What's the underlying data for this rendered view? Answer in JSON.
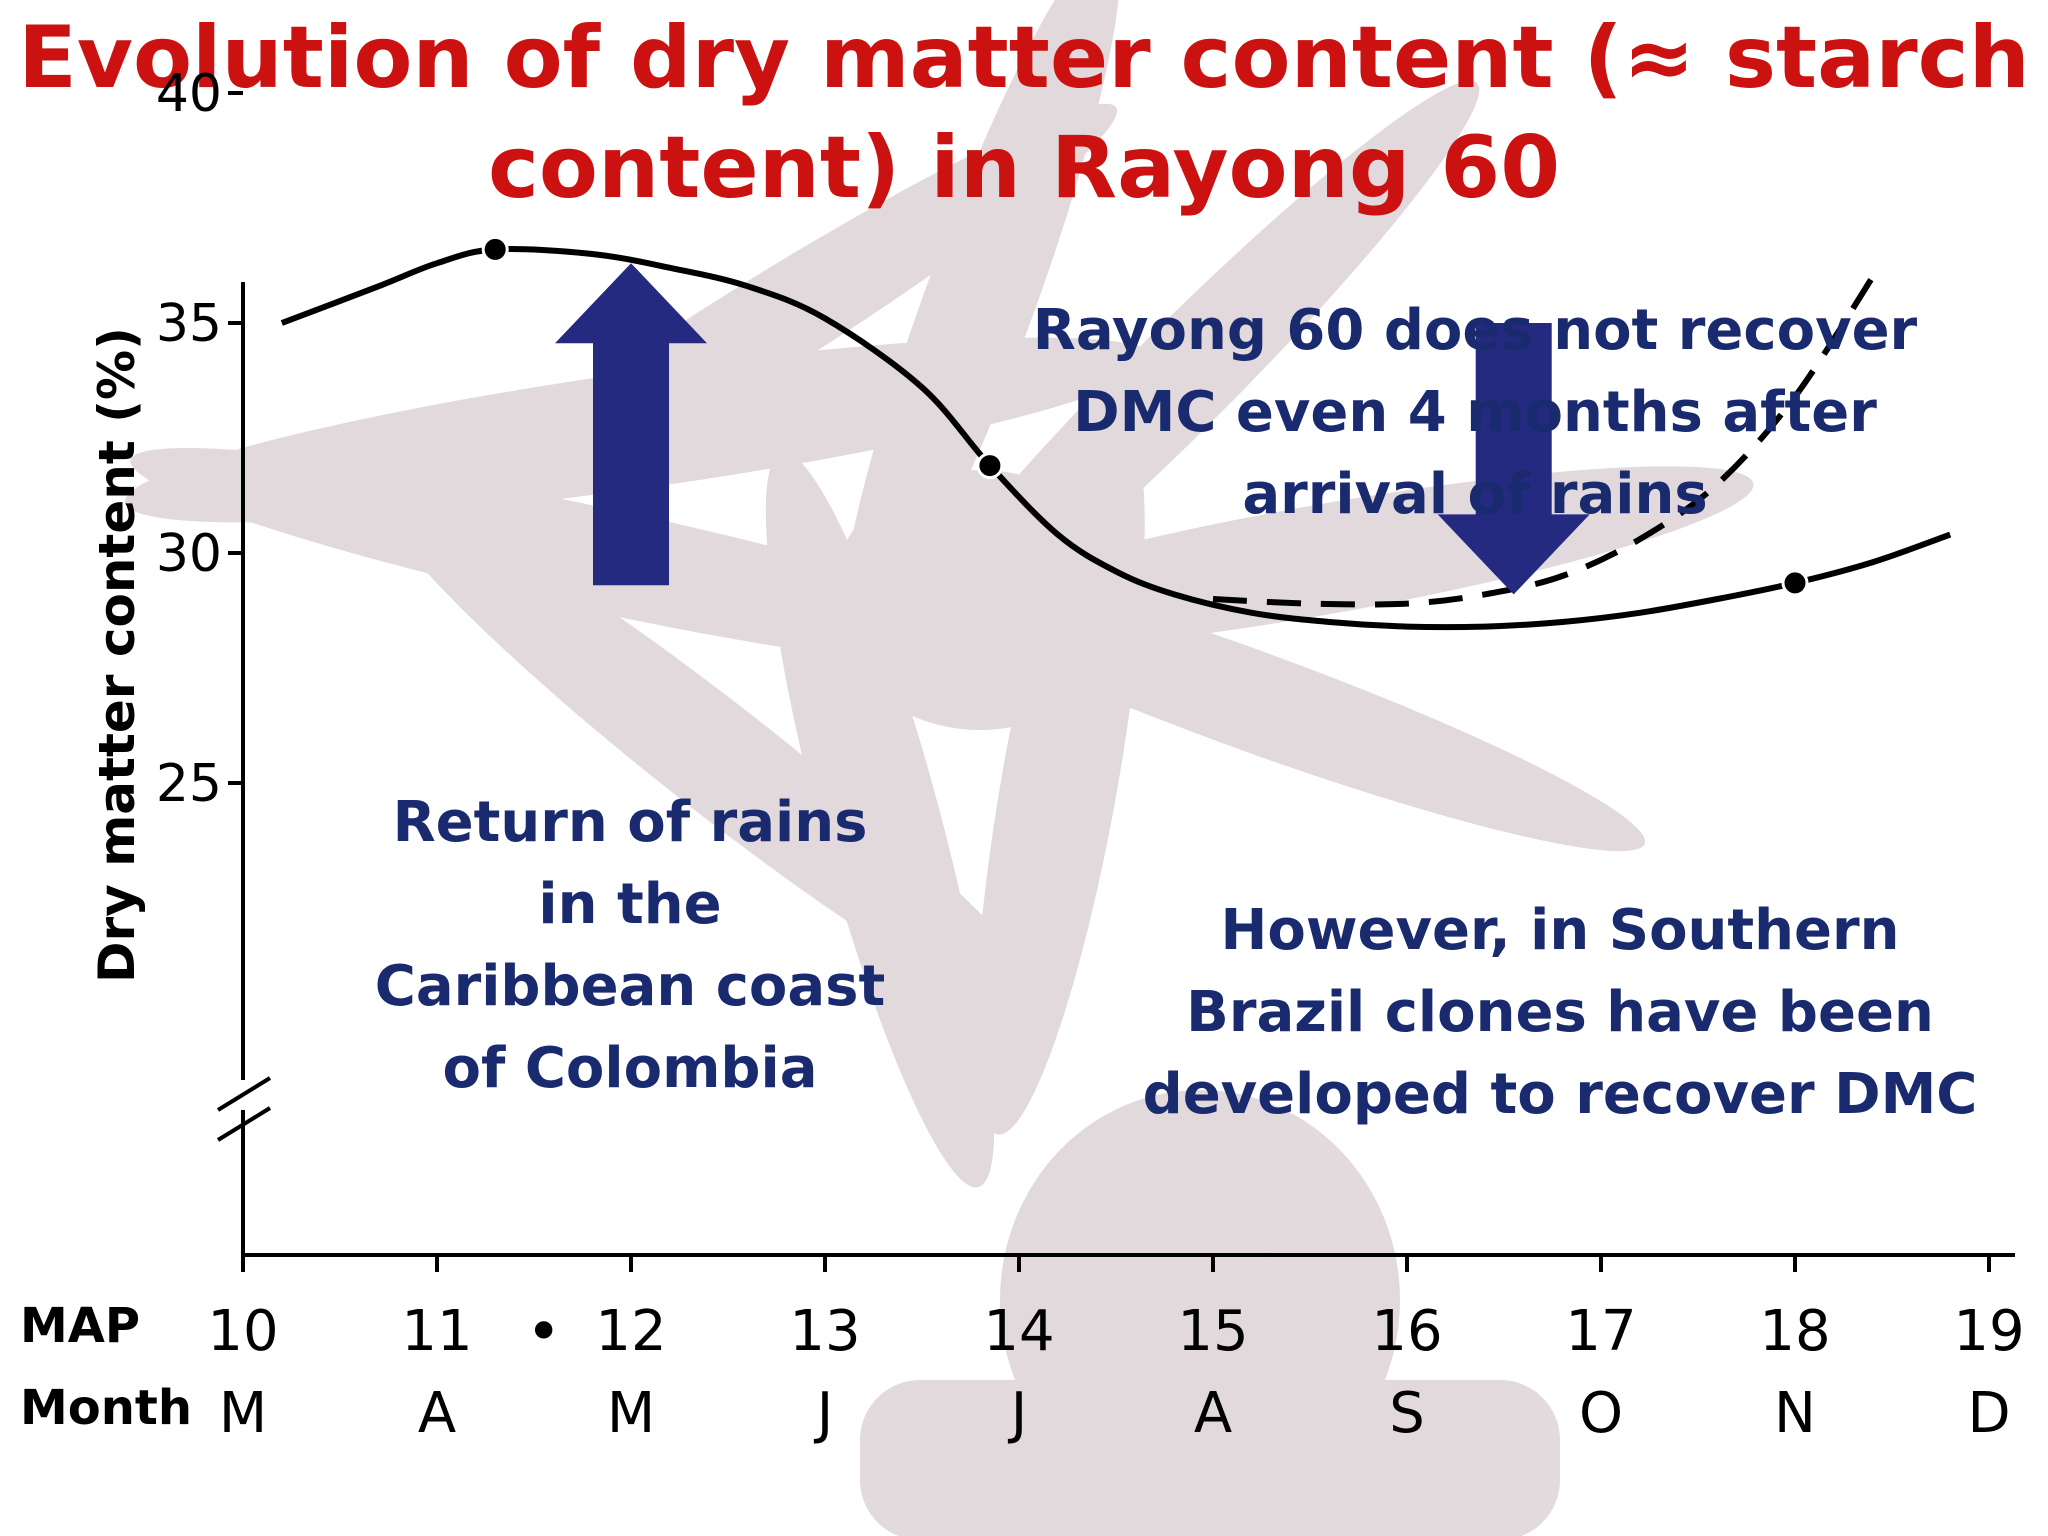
{
  "title_lines": [
    "Evolution of dry matter content (≈ starch",
    "content) in Rayong 60"
  ],
  "chart_data": {
    "type": "line",
    "ylabel": "Dry matter content (%)",
    "yticks": [
      25,
      30,
      35,
      40
    ],
    "ylim": [
      25,
      40
    ],
    "axis_break": true,
    "xlim": [
      10,
      19
    ],
    "row_labels": {
      "map": "MAP",
      "month": "Month"
    },
    "x_ticks": [
      {
        "map": "10",
        "month": "M"
      },
      {
        "map": "11",
        "month": "A"
      },
      {
        "map": "12",
        "month": "M"
      },
      {
        "map": "13",
        "month": "J"
      },
      {
        "map": "14",
        "month": "J"
      },
      {
        "map": "15",
        "month": "A"
      },
      {
        "map": "16",
        "month": "S"
      },
      {
        "map": "17",
        "month": "O"
      },
      {
        "map": "18",
        "month": "N"
      },
      {
        "map": "19",
        "month": "D"
      }
    ],
    "extra_tick_marker": {
      "x": 11.55,
      "symbol": "•"
    },
    "series": [
      {
        "style": "solid",
        "x": [
          10.2,
          10.7,
          11.0,
          11.3,
          11.8,
          12.2,
          12.6,
          13.0,
          13.5,
          13.85,
          14.2,
          14.5,
          14.8,
          15.2,
          15.6,
          16.0,
          16.4,
          16.8,
          17.2,
          17.6,
          18.0,
          18.4,
          18.8
        ],
        "y": [
          35.0,
          35.8,
          36.3,
          36.6,
          36.5,
          36.2,
          35.8,
          35.1,
          33.6,
          31.9,
          30.4,
          29.6,
          29.1,
          28.7,
          28.5,
          28.4,
          28.4,
          28.5,
          28.7,
          29.0,
          29.35,
          29.8,
          30.4
        ],
        "markers": [
          {
            "x": 11.3,
            "y": 36.6
          },
          {
            "x": 13.85,
            "y": 31.9
          },
          {
            "x": 18.0,
            "y": 29.35
          }
        ]
      },
      {
        "style": "dashed",
        "x": [
          15.0,
          15.5,
          16.0,
          16.4,
          16.8,
          17.2,
          17.6,
          18.0,
          18.4
        ],
        "y": [
          29.0,
          28.9,
          28.9,
          29.1,
          29.5,
          30.3,
          31.5,
          33.4,
          36.0
        ]
      }
    ],
    "arrows": [
      {
        "direction": "up",
        "x": 12.0,
        "y_from": 29.3,
        "y_to": 36.3,
        "color": "#232a80"
      },
      {
        "direction": "down",
        "x": 16.55,
        "y_from": 35.0,
        "y_to": 29.1,
        "color": "#232a80"
      }
    ]
  },
  "annotations": {
    "rayong": [
      "Rayong 60 does not recover",
      "DMC even 4 months after",
      "arrival of rains"
    ],
    "rains": [
      "Return of rains",
      "in the",
      "Caribbean coast",
      "of Colombia"
    ],
    "brazil": [
      "However, in Southern",
      "Brazil clones have been",
      "developed to recover DMC"
    ]
  }
}
